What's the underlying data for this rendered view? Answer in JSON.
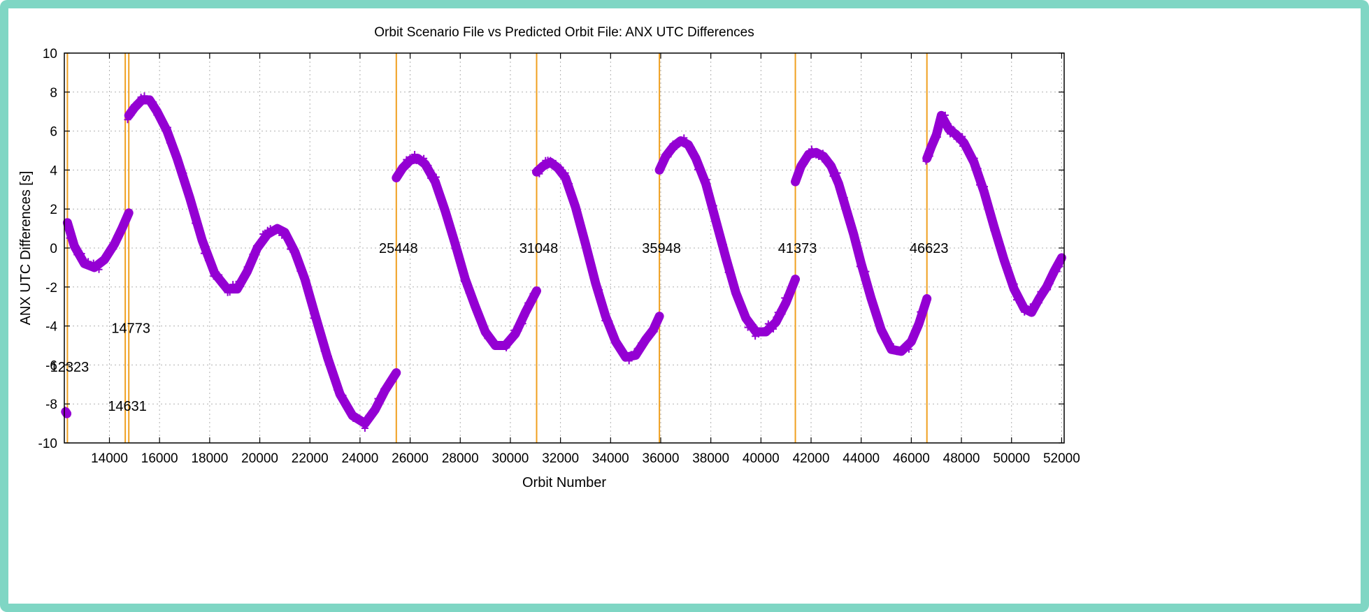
{
  "chart_data": {
    "type": "scatter",
    "title": "Orbit Scenario File vs Predicted Orbit File: ANX UTC Differences",
    "xlabel": "Orbit Number",
    "ylabel": "ANX UTC Differences [s]",
    "xlim": [
      12200,
      52100
    ],
    "ylim": [
      -10,
      10
    ],
    "xticks": [
      14000,
      16000,
      18000,
      20000,
      22000,
      24000,
      26000,
      28000,
      30000,
      32000,
      34000,
      36000,
      38000,
      40000,
      42000,
      44000,
      46000,
      48000,
      50000,
      52000
    ],
    "yticks": [
      -10,
      -8,
      -6,
      -4,
      -2,
      0,
      2,
      4,
      6,
      8,
      10
    ],
    "grid": true,
    "marker": "+",
    "colors": {
      "series": "#9400d3",
      "vlines": "#f0a020",
      "grid": "#b0b0b0"
    },
    "vlines": [
      {
        "x": 12323,
        "label": "12323",
        "label_y": -6.1
      },
      {
        "x": 14631,
        "label": "14631",
        "label_y": -8.1
      },
      {
        "x": 14773,
        "label": "14773",
        "label_y": -4.1
      },
      {
        "x": 25448,
        "label": "25448",
        "label_y": 0
      },
      {
        "x": 31048,
        "label": "31048",
        "label_y": 0
      },
      {
        "x": 35948,
        "label": "35948",
        "label_y": 0
      },
      {
        "x": 41373,
        "label": "41373",
        "label_y": 0
      },
      {
        "x": 46623,
        "label": "46623",
        "label_y": 0
      }
    ],
    "series": [
      {
        "segments": [
          {
            "x": [
              12250,
              12300
            ],
            "y": [
              -8.4,
              -8.5
            ]
          },
          {
            "x": [
              12323,
              12600,
              13000,
              13400,
              13800,
              14200,
              14500,
              14773
            ],
            "y": [
              1.3,
              0.1,
              -0.8,
              -1.0,
              -0.6,
              0.2,
              1.0,
              1.8
            ]
          },
          {
            "x": [
              14773,
              15000,
              15300,
              15600,
              15900,
              16300,
              16700,
              17200,
              17700,
              18200,
              18700,
              19100,
              19500,
              19900,
              20300,
              20700,
              21000,
              21400,
              21800,
              22200,
              22700,
              23200,
              23700,
              24200,
              24600,
              25000,
              25448
            ],
            "y": [
              6.8,
              7.2,
              7.6,
              7.6,
              7.0,
              6.0,
              4.6,
              2.6,
              0.4,
              -1.3,
              -2.1,
              -2.1,
              -1.2,
              0.0,
              0.7,
              1.0,
              0.8,
              -0.2,
              -1.6,
              -3.4,
              -5.6,
              -7.5,
              -8.6,
              -9.0,
              -8.3,
              -7.3,
              -6.4
            ]
          },
          {
            "x": [
              25448,
              25700,
              26000,
              26300,
              26600,
              27000,
              27400,
              27800,
              28200,
              28600,
              29000,
              29400,
              29800,
              30200,
              30600,
              31048
            ],
            "y": [
              3.6,
              4.1,
              4.5,
              4.6,
              4.3,
              3.4,
              1.9,
              0.2,
              -1.6,
              -3.0,
              -4.3,
              -5.0,
              -5.0,
              -4.4,
              -3.3,
              -2.2
            ]
          },
          {
            "x": [
              31048,
              31300,
              31600,
              31900,
              32200,
              32600,
              33000,
              33400,
              33800,
              34200,
              34600,
              35000,
              35400,
              35700,
              35948
            ],
            "y": [
              3.9,
              4.2,
              4.4,
              4.1,
              3.6,
              2.1,
              0.2,
              -1.8,
              -3.5,
              -4.8,
              -5.6,
              -5.5,
              -4.7,
              -4.2,
              -3.5
            ]
          },
          {
            "x": [
              35948,
              36200,
              36500,
              36800,
              37100,
              37400,
              37800,
              38200,
              38600,
              39000,
              39400,
              39800,
              40200,
              40600,
              41000,
              41373
            ],
            "y": [
              4.0,
              4.7,
              5.2,
              5.5,
              5.3,
              4.6,
              3.3,
              1.4,
              -0.5,
              -2.3,
              -3.6,
              -4.3,
              -4.3,
              -3.8,
              -2.8,
              -1.6
            ]
          },
          {
            "x": [
              41373,
              41600,
              41900,
              42200,
              42500,
              42800,
              43100,
              43400,
              43700,
              44000,
              44400,
              44800,
              45200,
              45600,
              46000,
              46300,
              46623
            ],
            "y": [
              3.4,
              4.2,
              4.8,
              4.9,
              4.7,
              4.2,
              3.3,
              2.0,
              0.7,
              -0.8,
              -2.6,
              -4.2,
              -5.2,
              -5.3,
              -4.8,
              -3.9,
              -2.6
            ]
          },
          {
            "x": [
              46623,
              46800,
              47000,
              47200,
              47500,
              47800,
              48100,
              48500,
              48900,
              49300,
              49700,
              50100,
              50500,
              50800,
              51100,
              51400,
              51700,
              52000
            ],
            "y": [
              4.6,
              5.2,
              5.8,
              6.8,
              6.1,
              5.8,
              5.4,
              4.4,
              2.9,
              1.1,
              -0.6,
              -2.1,
              -3.1,
              -3.3,
              -2.6,
              -2.0,
              -1.2,
              -0.5
            ]
          }
        ]
      }
    ]
  }
}
